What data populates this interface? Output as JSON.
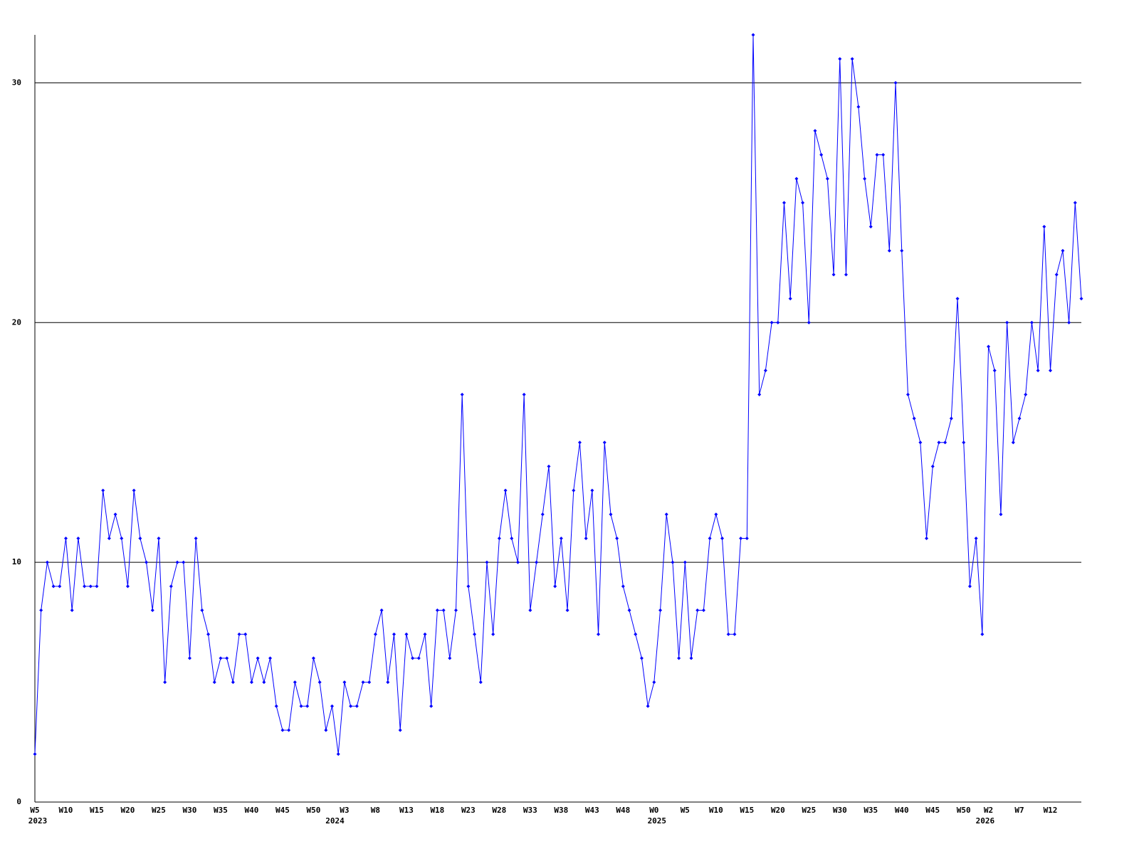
{
  "chart_data": {
    "type": "line",
    "categories": [
      "W5",
      null,
      null,
      null,
      null,
      "W10",
      null,
      null,
      null,
      null,
      "W15",
      null,
      null,
      null,
      null,
      "W20",
      null,
      null,
      null,
      null,
      "W25",
      null,
      null,
      null,
      null,
      "W30",
      null,
      null,
      null,
      null,
      "W35",
      null,
      null,
      null,
      null,
      "W40",
      null,
      null,
      null,
      null,
      "W45",
      null,
      null,
      null,
      null,
      "W50",
      null,
      null,
      null,
      null,
      "W3",
      null,
      null,
      null,
      null,
      "W8",
      null,
      null,
      null,
      null,
      "W13",
      null,
      null,
      null,
      null,
      "W18",
      null,
      null,
      null,
      null,
      "W23",
      null,
      null,
      null,
      null,
      "W28",
      null,
      null,
      null,
      null,
      "W33",
      null,
      null,
      null,
      null,
      "W38",
      null,
      null,
      null,
      null,
      "W43",
      null,
      null,
      null,
      null,
      "W48",
      null,
      null,
      null,
      null,
      "W0",
      null,
      null,
      null,
      null,
      "W5",
      null,
      null,
      null,
      null,
      "W10",
      null,
      null,
      null,
      null,
      "W15",
      null,
      null,
      null,
      null,
      "W20",
      null,
      null,
      null,
      null,
      "W25",
      null,
      null,
      null,
      null,
      "W30",
      null,
      null,
      null,
      null,
      "W35",
      null,
      null,
      null,
      null,
      "W40",
      null,
      null,
      null,
      null,
      "W45",
      null,
      null,
      null,
      null,
      "W50",
      null,
      null,
      null,
      "W2",
      null,
      null,
      null,
      null,
      "W7",
      null,
      null,
      null,
      null,
      "W12",
      null,
      null,
      null,
      null,
      null
    ],
    "category_years": [
      "2023",
      null,
      null,
      null,
      null,
      null,
      null,
      null,
      null,
      null,
      null,
      null,
      null,
      null,
      null,
      null,
      null,
      null,
      null,
      null,
      null,
      null,
      null,
      null,
      null,
      null,
      null,
      null,
      null,
      null,
      null,
      null,
      null,
      null,
      null,
      null,
      null,
      null,
      null,
      null,
      null,
      null,
      null,
      null,
      null,
      null,
      null,
      null,
      "2024",
      null,
      null,
      null,
      null,
      null,
      null,
      null,
      null,
      null,
      null,
      null,
      null,
      null,
      null,
      null,
      null,
      null,
      null,
      null,
      null,
      null,
      null,
      null,
      null,
      null,
      null,
      null,
      null,
      null,
      null,
      null,
      null,
      null,
      null,
      null,
      null,
      null,
      null,
      null,
      null,
      null,
      null,
      null,
      null,
      null,
      null,
      null,
      null,
      null,
      null,
      null,
      "2025",
      null,
      null,
      null,
      null,
      null,
      null,
      null,
      null,
      null,
      null,
      null,
      null,
      null,
      null,
      null,
      null,
      null,
      null,
      null,
      null,
      null,
      null,
      null,
      null,
      null,
      null,
      null,
      null,
      null,
      null,
      null,
      null,
      null,
      null,
      null,
      null,
      null,
      null,
      null,
      null,
      null,
      null,
      null,
      null,
      null,
      null,
      null,
      null,
      null,
      null,
      null,
      null,
      "2026",
      null,
      null,
      null,
      null,
      null,
      null,
      null,
      null,
      null,
      null,
      null,
      null,
      null,
      null,
      null,
      null
    ],
    "series": [
      {
        "color": "#0000ff",
        "values": [
          2,
          8,
          10,
          9,
          9,
          11,
          8,
          11,
          9,
          9,
          9,
          13,
          11,
          12,
          11,
          9,
          13,
          11,
          10,
          8,
          11,
          5,
          9,
          10,
          10,
          6,
          11,
          8,
          7,
          5,
          6,
          6,
          5,
          7,
          7,
          5,
          6,
          5,
          6,
          4,
          3,
          3,
          5,
          4,
          4,
          6,
          5,
          3,
          4,
          2,
          5,
          4,
          4,
          5,
          5,
          7,
          8,
          5,
          7,
          3,
          7,
          6,
          6,
          7,
          4,
          8,
          8,
          6,
          8,
          17,
          9,
          7,
          5,
          10,
          7,
          11,
          13,
          11,
          10,
          17,
          8,
          10,
          12,
          14,
          9,
          11,
          8,
          13,
          15,
          11,
          13,
          7,
          15,
          12,
          11,
          9,
          8,
          7,
          6,
          4,
          5,
          8,
          12,
          10,
          6,
          10,
          6,
          8,
          8,
          11,
          12,
          11,
          7,
          7,
          11,
          11,
          32,
          17,
          18,
          20,
          20,
          25,
          21,
          26,
          25,
          20,
          28,
          27,
          26,
          22,
          31,
          22,
          31,
          29,
          26,
          24,
          27,
          27,
          23,
          30,
          23,
          17,
          16,
          15,
          11,
          14,
          15,
          15,
          16,
          21,
          15,
          9,
          11,
          7,
          19,
          18,
          12,
          20,
          15,
          16,
          17,
          20,
          18,
          24,
          18,
          22,
          23,
          20,
          25,
          21
        ]
      }
    ],
    "ylim": [
      0,
      32
    ],
    "yticks": [
      0,
      10,
      20,
      30
    ],
    "grid": true
  }
}
